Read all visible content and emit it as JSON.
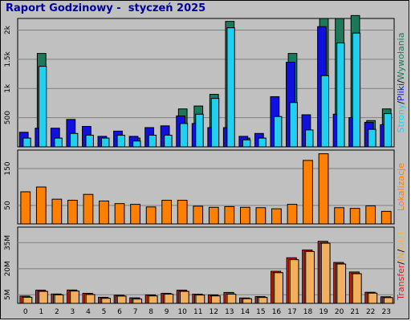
{
  "title": "Raport Godzinowy -  styczeń 2025",
  "colors": {
    "background": "#c0c0c0",
    "plot": "#c0c0c0",
    "grid": "#808080",
    "pages": "#1c7a5a",
    "files": "#1010e0",
    "hits": "#20d0f0",
    "locations": "#ff8000",
    "transfer": "#e02020",
    "in": "#f0a030",
    "out": "#f0b060"
  },
  "chart_data": [
    {
      "type": "bar",
      "name": "pages-files-hits",
      "categories": [
        "0",
        "1",
        "2",
        "3",
        "4",
        "5",
        "6",
        "7",
        "8",
        "9",
        "10",
        "11",
        "12",
        "13",
        "14",
        "15",
        "16",
        "17",
        "18",
        "19",
        "20",
        "21",
        "22",
        "23"
      ],
      "y_tick_labels": [
        "500",
        "1k",
        "1.5k",
        "2k"
      ],
      "y_ticks": [
        500,
        1000,
        1500,
        2000
      ],
      "ylim": [
        0,
        2200
      ],
      "ylabel_parts": [
        "Strony",
        "/",
        "Pliki",
        "/",
        "Wywołania"
      ],
      "series": [
        {
          "name": "Strony",
          "values": [
            150,
            1600,
            150,
            150,
            150,
            150,
            150,
            150,
            150,
            150,
            650,
            700,
            900,
            2150,
            150,
            150,
            150,
            1600,
            150,
            2200,
            2200,
            2250,
            450,
            650
          ]
        },
        {
          "name": "Pliki",
          "values": [
            250,
            320,
            320,
            470,
            350,
            180,
            270,
            180,
            330,
            360,
            530,
            400,
            330,
            330,
            180,
            230,
            860,
            1450,
            550,
            2060,
            560,
            500,
            420,
            380
          ]
        },
        {
          "name": "Wywołania",
          "values": [
            150,
            1380,
            150,
            230,
            200,
            150,
            200,
            100,
            200,
            200,
            400,
            560,
            830,
            2040,
            120,
            150,
            520,
            760,
            290,
            1220,
            1780,
            1950,
            300,
            570
          ]
        }
      ]
    },
    {
      "type": "bar",
      "name": "locations",
      "categories": [
        "0",
        "1",
        "2",
        "3",
        "4",
        "5",
        "6",
        "7",
        "8",
        "9",
        "10",
        "11",
        "12",
        "13",
        "14",
        "15",
        "16",
        "17",
        "18",
        "19",
        "20",
        "21",
        "22",
        "23"
      ],
      "y_tick_labels": [
        "50",
        "150"
      ],
      "y_ticks": [
        50,
        150
      ],
      "ylim": [
        0,
        200
      ],
      "ylabel_parts": [
        "Lokalizacje"
      ],
      "series": [
        {
          "name": "Lokalizacje",
          "values": [
            87,
            100,
            67,
            64,
            80,
            62,
            55,
            53,
            46,
            64,
            64,
            48,
            45,
            47,
            45,
            44,
            41,
            53,
            172,
            190,
            44,
            42,
            49,
            34
          ]
        }
      ]
    },
    {
      "type": "bar",
      "name": "transfer",
      "categories": [
        "0",
        "1",
        "2",
        "3",
        "4",
        "5",
        "6",
        "7",
        "8",
        "9",
        "10",
        "11",
        "12",
        "13",
        "14",
        "15",
        "16",
        "17",
        "18",
        "19",
        "20",
        "21",
        "22",
        "23"
      ],
      "y_tick_labels": [
        "5M",
        "20M",
        "35M"
      ],
      "y_ticks": [
        5,
        20,
        35
      ],
      "ylim": [
        0,
        44
      ],
      "ylabel_parts": [
        "Transfer",
        "/",
        "IN",
        "/",
        "OUT"
      ],
      "series": [
        {
          "name": "Transfer",
          "values": [
            4.2,
            7.6,
            5.4,
            7.7,
            5.8,
            3.5,
            4.7,
            3.2,
            4.9,
            5.8,
            7.6,
            5.3,
            4.9,
            6.3,
            3.1,
            3.9,
            18.5,
            26.3,
            30.8,
            35.8,
            23.6,
            18.1,
            6.4,
            3.8
          ]
        },
        {
          "name": "IN",
          "values": [
            3.6,
            7.0,
            5.0,
            7.2,
            5.2,
            3.0,
            4.3,
            2.6,
            4.4,
            5.4,
            7.0,
            4.9,
            4.4,
            5.4,
            2.8,
            3.5,
            17.8,
            25.3,
            30.0,
            34.8,
            22.8,
            17.2,
            6.0,
            3.4
          ]
        },
        {
          "name": "OUT",
          "values": [
            3.5,
            6.9,
            4.9,
            7.1,
            5.1,
            2.9,
            4.2,
            2.5,
            4.3,
            5.3,
            6.9,
            4.8,
            4.3,
            5.3,
            2.7,
            3.4,
            17.7,
            25.2,
            29.9,
            34.7,
            22.7,
            17.1,
            5.9,
            3.3
          ]
        }
      ]
    }
  ]
}
